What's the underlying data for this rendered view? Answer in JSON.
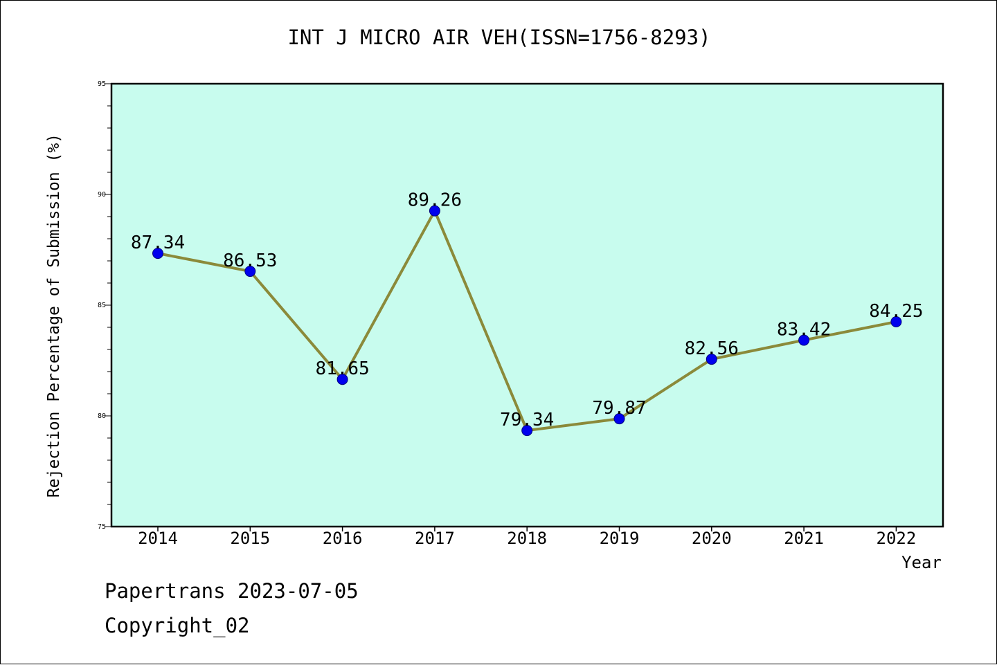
{
  "chart_data": {
    "type": "line",
    "title": "INT J MICRO AIR VEH(ISSN=1756-8293)",
    "xlabel": "Year",
    "ylabel": "Rejection Percentage of Submission (%)",
    "categories": [
      "2014",
      "2015",
      "2016",
      "2017",
      "2018",
      "2019",
      "2020",
      "2021",
      "2022"
    ],
    "series": [
      {
        "values": [
          87.34,
          86.53,
          81.65,
          89.26,
          79.34,
          79.87,
          82.56,
          83.42,
          84.25
        ]
      }
    ],
    "data_labels": [
      "87.34",
      "86.53",
      "81.65",
      "89.26",
      "79.34",
      "79.87",
      "82.56",
      "83.42",
      "84.25"
    ],
    "ylim": [
      75,
      95
    ],
    "yticks": [
      75,
      80,
      85,
      90,
      95
    ],
    "ytick_labels": [
      "75",
      "80",
      "85",
      "90",
      "95"
    ],
    "grid": false,
    "legend": "none",
    "colors": {
      "plot_background": "#c8fcee",
      "line": "#8b8a3a",
      "marker": "#0000ee",
      "marker_edge": "#000080",
      "frame": "#000000"
    }
  },
  "footer": {
    "line1": "Papertrans 2023-07-05",
    "line2": "Copyright_02"
  }
}
